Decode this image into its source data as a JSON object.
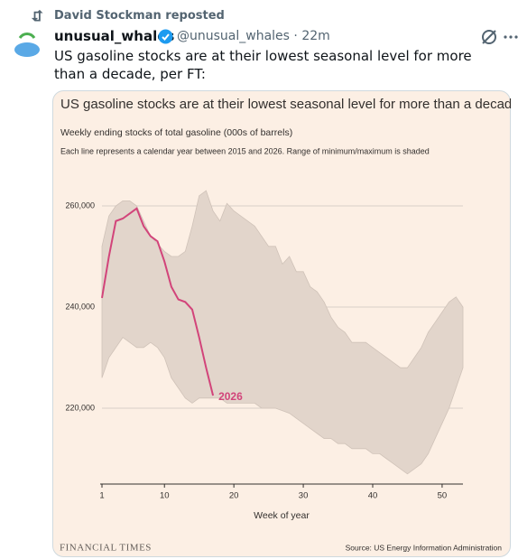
{
  "tweet": {
    "repost": "David Stockman reposted",
    "name": "unusual_whales",
    "handle": "@unusual_whales",
    "time": "22m",
    "text": "US gasoline stocks are at their lowest seasonal level for more than a decade, per FT:"
  },
  "chart_data": {
    "type": "line",
    "title": "US gasoline stocks are at their lowest seasonal level for more than a decade",
    "subtitle": "Weekly ending stocks of total gasoline (000s of barrels)",
    "note": "Each line represents a calendar year between 2015 and 2026. Range of minimum/maximum is shaded",
    "x_label": "Week of year",
    "brand": "FINANCIAL TIMES",
    "source": "Source: US Energy Information Administration",
    "x": [
      1,
      2,
      3,
      4,
      5,
      6,
      7,
      8,
      9,
      10,
      11,
      12,
      13,
      14,
      15,
      16,
      17,
      18,
      19,
      20,
      21,
      22,
      23,
      24,
      25,
      26,
      27,
      28,
      29,
      30,
      31,
      32,
      33,
      34,
      35,
      36,
      37,
      38,
      39,
      40,
      41,
      42,
      43,
      44,
      45,
      46,
      47,
      48,
      49,
      50,
      51,
      52,
      53
    ],
    "series": [
      {
        "name": "2026",
        "color": "#d2447a",
        "values": [
          241800,
          250000,
          257000,
          257500,
          258500,
          259500,
          256000,
          254000,
          253000,
          249000,
          244000,
          241500,
          241000,
          239500,
          234000,
          228000,
          222500,
          null,
          null,
          null,
          null,
          null,
          null,
          null,
          null,
          null,
          null,
          null,
          null,
          null,
          null,
          null,
          null,
          null,
          null,
          null,
          null,
          null,
          null,
          null,
          null,
          null,
          null,
          null,
          null,
          null,
          null,
          null,
          null,
          null,
          null,
          null,
          null
        ]
      }
    ],
    "band": {
      "color": "#e2d5cb",
      "max": [
        252000,
        258000,
        260000,
        261000,
        261000,
        260000,
        257000,
        254000,
        252500,
        251000,
        250000,
        250000,
        251000,
        256000,
        262000,
        263000,
        259000,
        257000,
        260500,
        259000,
        258000,
        257000,
        256000,
        254000,
        252000,
        252000,
        248500,
        250000,
        247000,
        247000,
        244000,
        243000,
        241000,
        238000,
        236000,
        235000,
        233000,
        233000,
        233000,
        232000,
        231000,
        230000,
        229000,
        228000,
        228000,
        230000,
        232000,
        235000,
        237000,
        239000,
        241000,
        242000,
        240000
      ],
      "min": [
        226000,
        230000,
        232000,
        234000,
        233000,
        232000,
        232000,
        233000,
        232000,
        230000,
        226000,
        224000,
        222000,
        221000,
        222000,
        222000,
        222000,
        222000,
        221000,
        221000,
        221000,
        221000,
        221000,
        220000,
        220000,
        220000,
        219500,
        219000,
        218000,
        217000,
        216000,
        215000,
        214000,
        214000,
        213000,
        213000,
        212000,
        212000,
        212000,
        211000,
        211000,
        210000,
        209000,
        208000,
        207000,
        208000,
        209000,
        211000,
        214000,
        217000,
        220000,
        224000,
        228000
      ]
    },
    "xlim": [
      1,
      53
    ],
    "xticks": [
      1,
      10,
      20,
      30,
      40,
      50
    ],
    "ylim": [
      205000,
      265000
    ],
    "yticks": [
      {
        "value": 220000,
        "label": "220,000"
      },
      {
        "value": 240000,
        "label": "240,000"
      },
      {
        "value": 260000,
        "label": "260,000"
      }
    ],
    "grid": true
  }
}
